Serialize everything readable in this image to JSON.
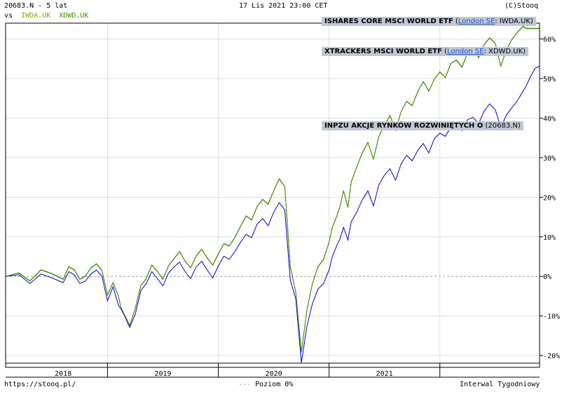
{
  "header": {
    "left_line1": "20683.N - 5 lat",
    "vs_label": "vs",
    "compare1": "IWDA.UK",
    "compare2": "XDWD.UK",
    "datetime": "17 Lis 2021 23:00 CET",
    "copyright": "(C)Stooq"
  },
  "legends": [
    {
      "name": "ISHARES CORE MSCI WORLD ETF",
      "open": " (",
      "exchange": "London SE",
      "ticker": ": IWDA.UK)"
    },
    {
      "name": "XTRACKERS MSCI WORLD ETF",
      "open": " (",
      "exchange": "London SE",
      "ticker": ": XDWD.UK)"
    },
    {
      "name": "INPZU AKCJE RYNKÓW ROZWINIĘTYCH O",
      "open": " (",
      "exchange": "",
      "ticker": "20683.N)"
    }
  ],
  "footer": {
    "url": "https://stooq.pl/",
    "level_label": "Poziom 0%",
    "interval": "Interwal Tygodniowy"
  },
  "colors": {
    "inpzu": "#0000cc",
    "etf": "#339900",
    "grid": "#dddddd",
    "zero": "#999999",
    "iwda_header": "#999900",
    "xdwd_header": "#339900"
  },
  "chart_data": {
    "type": "line",
    "x_tick_labels": [
      "2018",
      "2019",
      "2020",
      "2021"
    ],
    "y_tick_labels": [
      "60%",
      "50%",
      "40%",
      "30%",
      "20%",
      "10%",
      "0%",
      "-10%",
      "-20%"
    ],
    "y_ticks": [
      60,
      50,
      40,
      30,
      20,
      10,
      0,
      -10,
      -20
    ],
    "ylim": [
      -23,
      64
    ],
    "x_unit": "years",
    "xlim": [
      2017.08,
      2021.9
    ],
    "series": [
      {
        "name": "20683.N",
        "x": [
          2017.08,
          2017.2,
          2017.3,
          2017.4,
          2017.5,
          2017.6,
          2017.65,
          2017.7,
          2017.75,
          2017.8,
          2017.85,
          2017.9,
          2017.95,
          2018.0,
          2018.05,
          2018.1,
          2018.12,
          2018.15,
          2018.2,
          2018.25,
          2018.3,
          2018.35,
          2018.4,
          2018.45,
          2018.5,
          2018.55,
          2018.6,
          2018.65,
          2018.7,
          2018.75,
          2018.8,
          2018.85,
          2018.9,
          2018.95,
          2019.0,
          2019.05,
          2019.1,
          2019.15,
          2019.2,
          2019.25,
          2019.3,
          2019.35,
          2019.4,
          2019.45,
          2019.5,
          2019.55,
          2019.6,
          2019.65,
          2019.7,
          2019.75,
          2019.8,
          2019.85,
          2019.9,
          2019.95,
          2020.0,
          2020.03,
          2020.07,
          2020.1,
          2020.13,
          2020.17,
          2020.2,
          2020.25,
          2020.3,
          2020.35,
          2020.4,
          2020.45,
          2020.5,
          2020.55,
          2020.6,
          2020.65,
          2020.7,
          2020.75,
          2020.8,
          2020.85,
          2020.9,
          2020.95,
          2021.0,
          2021.05,
          2021.1,
          2021.15,
          2021.2,
          2021.25,
          2021.3,
          2021.35,
          2021.4,
          2021.45,
          2021.5,
          2021.55,
          2021.6,
          2021.65,
          2021.7,
          2021.75,
          2021.78,
          2021.82,
          2021.86,
          2021.9
        ],
        "values": [
          0.0,
          0.4,
          -1.8,
          0.6,
          -0.4,
          -1.6,
          1.2,
          0.4,
          -1.8,
          -1.2,
          0.6,
          1.6,
          0.0,
          -6.2,
          -2.6,
          -7.4,
          -8.2,
          -9.8,
          -12.9,
          -9.6,
          -3.6,
          -1.8,
          1.2,
          -0.6,
          -2.4,
          0.8,
          2.4,
          3.6,
          1.2,
          -0.6,
          2.4,
          3.8,
          1.6,
          -0.4,
          2.6,
          5.1,
          4.3,
          6.3,
          8.6,
          10.6,
          9.8,
          13.2,
          14.6,
          12.8,
          16.2,
          18.6,
          16.8,
          -1.0,
          -5.8,
          -21.8,
          -12.6,
          -6.8,
          -3.2,
          -1.8,
          1.6,
          5.1,
          7.8,
          9.6,
          12.4,
          9.2,
          13.8,
          16.2,
          19.4,
          21.6,
          17.8,
          23.2,
          25.6,
          27.2,
          24.3,
          28.4,
          30.6,
          29.2,
          31.8,
          33.6,
          31.2,
          34.8,
          36.2,
          35.4,
          37.8,
          38.6,
          36.8,
          39.6,
          40.2,
          38.6,
          41.8,
          43.6,
          42.1,
          37.6,
          40.8,
          42.6,
          44.4,
          46.8,
          48.2,
          50.6,
          52.6,
          53.1
        ],
        "color": "#0000cc"
      },
      {
        "name": "IWDA.UK",
        "x": [
          2017.08,
          2017.2,
          2017.3,
          2017.4,
          2017.5,
          2017.6,
          2017.65,
          2017.7,
          2017.75,
          2017.8,
          2017.85,
          2017.9,
          2017.95,
          2018.0,
          2018.05,
          2018.1,
          2018.12,
          2018.15,
          2018.2,
          2018.25,
          2018.3,
          2018.35,
          2018.4,
          2018.45,
          2018.5,
          2018.55,
          2018.6,
          2018.65,
          2018.7,
          2018.75,
          2018.8,
          2018.85,
          2018.9,
          2018.95,
          2019.0,
          2019.05,
          2019.1,
          2019.15,
          2019.2,
          2019.25,
          2019.3,
          2019.35,
          2019.4,
          2019.45,
          2019.5,
          2019.55,
          2019.6,
          2019.65,
          2019.7,
          2019.75,
          2019.8,
          2019.85,
          2019.9,
          2019.95,
          2020.0,
          2020.03,
          2020.07,
          2020.1,
          2020.13,
          2020.17,
          2020.2,
          2020.25,
          2020.3,
          2020.35,
          2020.4,
          2020.45,
          2020.5,
          2020.55,
          2020.6,
          2020.65,
          2020.7,
          2020.75,
          2020.8,
          2020.85,
          2020.9,
          2020.95,
          2021.0,
          2021.05,
          2021.1,
          2021.15,
          2021.2,
          2021.25,
          2021.3,
          2021.35,
          2021.4,
          2021.45,
          2021.5,
          2021.55,
          2021.6,
          2021.65,
          2021.7,
          2021.75,
          2021.78,
          2021.82,
          2021.86,
          2021.9
        ],
        "values": [
          0.0,
          0.8,
          -1.2,
          1.6,
          0.6,
          -0.8,
          2.4,
          1.6,
          -0.8,
          0.0,
          2.1,
          3.1,
          1.4,
          -4.8,
          -1.6,
          -5.2,
          -7.8,
          -9.6,
          -12.4,
          -8.2,
          -2.4,
          -0.6,
          2.8,
          1.2,
          -0.8,
          2.6,
          4.4,
          6.2,
          3.8,
          2.1,
          5.1,
          6.8,
          4.6,
          2.8,
          5.6,
          8.2,
          7.6,
          9.8,
          12.6,
          15.2,
          14.2,
          17.6,
          19.4,
          18.2,
          21.6,
          24.6,
          22.6,
          2.4,
          -4.2,
          -19.2,
          -8.6,
          -1.8,
          2.4,
          4.2,
          8.6,
          12.4,
          15.2,
          17.8,
          21.6,
          17.4,
          23.8,
          27.6,
          31.2,
          33.8,
          29.6,
          35.4,
          38.2,
          40.6,
          36.8,
          41.6,
          44.2,
          43.1,
          46.6,
          49.2,
          46.8,
          49.8,
          51.6,
          50.2,
          53.8,
          54.6,
          52.8,
          56.4,
          57.8,
          55.2,
          58.6,
          60.2,
          58.8,
          53.1,
          57.2,
          59.8,
          61.6,
          63.2,
          62.6,
          62.6,
          62.6,
          62.6
        ],
        "color": "#339900"
      },
      {
        "name": "XDWD.UK",
        "x": [
          2017.08,
          2017.2,
          2017.3,
          2017.4,
          2017.5,
          2017.6,
          2017.65,
          2017.7,
          2017.75,
          2017.8,
          2017.85,
          2017.9,
          2017.95,
          2018.0,
          2018.05,
          2018.1,
          2018.12,
          2018.15,
          2018.2,
          2018.25,
          2018.3,
          2018.35,
          2018.4,
          2018.45,
          2018.5,
          2018.55,
          2018.6,
          2018.65,
          2018.7,
          2018.75,
          2018.8,
          2018.85,
          2018.9,
          2018.95,
          2019.0,
          2019.05,
          2019.1,
          2019.15,
          2019.2,
          2019.25,
          2019.3,
          2019.35,
          2019.4,
          2019.45,
          2019.5,
          2019.55,
          2019.6,
          2019.65,
          2019.7,
          2019.75,
          2019.8,
          2019.85,
          2019.9,
          2019.95,
          2020.0,
          2020.03,
          2020.07,
          2020.1,
          2020.13,
          2020.17,
          2020.2,
          2020.25,
          2020.3,
          2020.35,
          2020.4,
          2020.45,
          2020.5,
          2020.55,
          2020.6,
          2020.65,
          2020.7,
          2020.75,
          2020.8,
          2020.85,
          2020.9,
          2020.95,
          2021.0,
          2021.05,
          2021.1,
          2021.15,
          2021.2,
          2021.25,
          2021.3,
          2021.35,
          2021.4,
          2021.45,
          2021.5,
          2021.55,
          2021.6,
          2021.65,
          2021.7,
          2021.75,
          2021.78,
          2021.82,
          2021.86,
          2021.9
        ],
        "values": [
          0.0,
          0.9,
          -1.1,
          1.7,
          0.7,
          -0.7,
          2.5,
          1.7,
          -0.7,
          0.1,
          2.2,
          3.2,
          1.5,
          -4.7,
          -1.5,
          -5.1,
          -7.7,
          -9.5,
          -12.3,
          -8.1,
          -2.3,
          -0.5,
          2.9,
          1.3,
          -0.7,
          2.7,
          4.5,
          6.3,
          3.9,
          2.2,
          5.2,
          6.9,
          4.7,
          2.9,
          5.7,
          8.3,
          7.7,
          9.9,
          12.7,
          15.3,
          14.3,
          17.7,
          19.5,
          18.3,
          21.7,
          24.7,
          22.7,
          2.5,
          -4.1,
          -19.1,
          -8.5,
          -1.7,
          2.5,
          4.3,
          8.7,
          12.5,
          15.3,
          17.9,
          21.7,
          17.5,
          23.9,
          27.7,
          31.3,
          33.9,
          29.7,
          35.5,
          38.3,
          40.7,
          36.9,
          41.7,
          44.3,
          43.2,
          46.7,
          49.3,
          46.9,
          49.9,
          51.7,
          50.3,
          53.9,
          54.7,
          52.9,
          56.5,
          57.9,
          55.3,
          58.7,
          60.3,
          58.9,
          53.2,
          57.3,
          59.9,
          61.7,
          63.3,
          62.7,
          62.7,
          62.7,
          62.7
        ],
        "color": "#4a8a10"
      }
    ]
  }
}
